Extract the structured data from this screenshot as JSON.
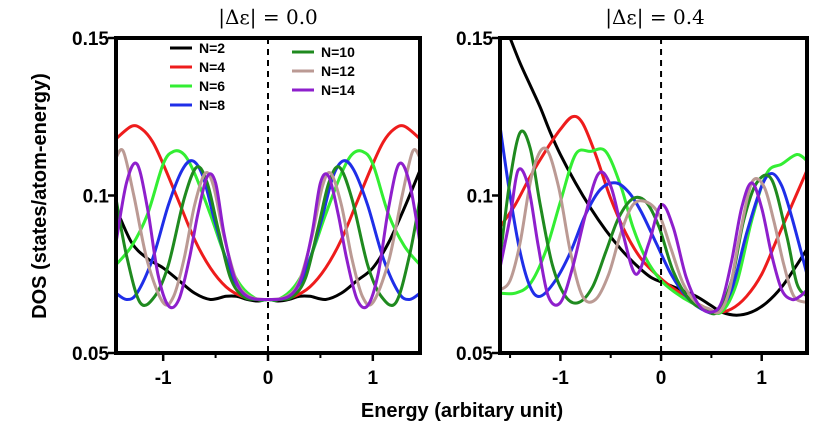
{
  "figure": {
    "xlabel": "Energy (arbitary unit)",
    "ylabel": "DOS (states/atom-energy)"
  },
  "chart_data": [
    {
      "type": "line",
      "title": "|Δε| = 0.0",
      "xlim": [
        -1.45,
        1.45
      ],
      "ylim": [
        0.05,
        0.15
      ],
      "xticks": [
        -1,
        0,
        1
      ],
      "xtick_labels": [
        "-1",
        "0",
        "1"
      ],
      "yticks": [
        0.05,
        0.1,
        0.15
      ],
      "ytick_labels": [
        "0.05",
        "0.1",
        "0.15"
      ],
      "reference_line": {
        "x": 0,
        "style": "dashed"
      },
      "legend": {
        "position": "top-left",
        "columns": 2
      },
      "series": [
        {
          "name": "N=2",
          "color": "#000000",
          "x": [
            -1.45,
            -1.3,
            -1.15,
            -1.0,
            -0.85,
            -0.7,
            -0.55,
            -0.4,
            -0.3,
            -0.2,
            -0.1,
            0,
            0.1,
            0.2,
            0.3,
            0.4,
            0.55,
            0.7,
            0.85,
            1.0,
            1.15,
            1.3,
            1.45
          ],
          "y": [
            0.096,
            0.085,
            0.08,
            0.077,
            0.073,
            0.069,
            0.067,
            0.068,
            0.068,
            0.067,
            0.0665,
            0.067,
            0.0665,
            0.067,
            0.068,
            0.068,
            0.067,
            0.069,
            0.073,
            0.077,
            0.085,
            0.096,
            0.108
          ]
        },
        {
          "name": "N=4",
          "color": "#ee1c1c",
          "x": [
            -1.45,
            -1.3,
            -1.2,
            -1.1,
            -1.0,
            -0.85,
            -0.7,
            -0.55,
            -0.4,
            -0.25,
            -0.1,
            0,
            0.1,
            0.25,
            0.4,
            0.55,
            0.7,
            0.85,
            1.0,
            1.1,
            1.2,
            1.3,
            1.45
          ],
          "y": [
            0.118,
            0.122,
            0.121,
            0.117,
            0.11,
            0.098,
            0.086,
            0.077,
            0.071,
            0.068,
            0.067,
            0.067,
            0.067,
            0.068,
            0.071,
            0.077,
            0.086,
            0.098,
            0.11,
            0.117,
            0.121,
            0.122,
            0.118
          ]
        },
        {
          "name": "N=6",
          "color": "#33ee33",
          "x": [
            -1.45,
            -1.3,
            -1.15,
            -1.0,
            -0.9,
            -0.8,
            -0.7,
            -0.55,
            -0.4,
            -0.25,
            -0.1,
            0,
            0.1,
            0.25,
            0.4,
            0.55,
            0.7,
            0.8,
            0.9,
            1.0,
            1.15,
            1.3,
            1.45
          ],
          "y": [
            0.078,
            0.084,
            0.094,
            0.11,
            0.114,
            0.113,
            0.107,
            0.094,
            0.08,
            0.071,
            0.067,
            0.067,
            0.067,
            0.071,
            0.08,
            0.094,
            0.107,
            0.113,
            0.114,
            0.11,
            0.094,
            0.084,
            0.078
          ]
        },
        {
          "name": "N=8",
          "color": "#1f2ee8",
          "x": [
            -1.45,
            -1.35,
            -1.25,
            -1.1,
            -0.95,
            -0.82,
            -0.72,
            -0.62,
            -0.5,
            -0.35,
            -0.2,
            -0.1,
            0,
            0.1,
            0.2,
            0.35,
            0.5,
            0.62,
            0.72,
            0.82,
            0.95,
            1.1,
            1.25,
            1.35,
            1.45
          ],
          "y": [
            0.069,
            0.067,
            0.069,
            0.08,
            0.097,
            0.108,
            0.111,
            0.106,
            0.091,
            0.075,
            0.068,
            0.067,
            0.067,
            0.067,
            0.068,
            0.075,
            0.091,
            0.106,
            0.111,
            0.108,
            0.097,
            0.08,
            0.069,
            0.067,
            0.069
          ]
        },
        {
          "name": "N=10",
          "color": "#1f8a1f",
          "x": [
            -1.45,
            -1.35,
            -1.22,
            -1.08,
            -0.95,
            -0.8,
            -0.68,
            -0.58,
            -0.48,
            -0.36,
            -0.24,
            -0.12,
            0,
            0.12,
            0.24,
            0.36,
            0.48,
            0.58,
            0.68,
            0.8,
            0.95,
            1.08,
            1.22,
            1.35,
            1.45
          ],
          "y": [
            0.099,
            0.081,
            0.066,
            0.068,
            0.078,
            0.099,
            0.109,
            0.104,
            0.09,
            0.074,
            0.068,
            0.067,
            0.067,
            0.067,
            0.068,
            0.074,
            0.09,
            0.104,
            0.109,
            0.099,
            0.078,
            0.068,
            0.066,
            0.081,
            0.099
          ]
        },
        {
          "name": "N=12",
          "color": "#bb9a94",
          "x": [
            -1.45,
            -1.38,
            -1.28,
            -1.15,
            -1.0,
            -0.9,
            -0.8,
            -0.7,
            -0.6,
            -0.52,
            -0.42,
            -0.3,
            -0.18,
            0,
            0.18,
            0.3,
            0.42,
            0.52,
            0.6,
            0.7,
            0.8,
            0.9,
            1.0,
            1.15,
            1.28,
            1.38,
            1.45
          ],
          "y": [
            0.112,
            0.114,
            0.1,
            0.079,
            0.066,
            0.068,
            0.08,
            0.097,
            0.107,
            0.103,
            0.087,
            0.073,
            0.068,
            0.067,
            0.068,
            0.073,
            0.087,
            0.103,
            0.107,
            0.097,
            0.08,
            0.068,
            0.066,
            0.079,
            0.1,
            0.114,
            0.112
          ]
        },
        {
          "name": "N=14",
          "color": "#8e1fcc",
          "x": [
            -1.45,
            -1.35,
            -1.25,
            -1.15,
            -1.05,
            -0.95,
            -0.85,
            -0.75,
            -0.67,
            -0.58,
            -0.5,
            -0.42,
            -0.32,
            -0.2,
            0,
            0.2,
            0.32,
            0.42,
            0.5,
            0.58,
            0.67,
            0.75,
            0.85,
            0.95,
            1.05,
            1.15,
            1.25,
            1.35,
            1.45
          ],
          "y": [
            0.085,
            0.104,
            0.11,
            0.096,
            0.075,
            0.065,
            0.067,
            0.08,
            0.094,
            0.106,
            0.104,
            0.088,
            0.074,
            0.068,
            0.067,
            0.068,
            0.074,
            0.088,
            0.104,
            0.106,
            0.094,
            0.08,
            0.067,
            0.065,
            0.075,
            0.096,
            0.11,
            0.104,
            0.085
          ]
        }
      ]
    },
    {
      "type": "line",
      "title": "|Δε| = 0.4",
      "xlim": [
        -1.6,
        1.45
      ],
      "ylim": [
        0.05,
        0.15
      ],
      "xticks": [
        -1,
        0,
        1
      ],
      "xtick_labels": [
        "-1",
        "0",
        "1"
      ],
      "yticks": [
        0.05,
        0.1,
        0.15
      ],
      "ytick_labels": [
        "0.05",
        "0.1",
        "0.15"
      ],
      "reference_line": {
        "x": 0,
        "style": "dashed"
      },
      "series": [
        {
          "name": "N=2",
          "color": "#000000",
          "x": [
            -1.6,
            -1.5,
            -1.4,
            -1.3,
            -1.2,
            -1.1,
            -1.0,
            -0.85,
            -0.7,
            -0.55,
            -0.4,
            -0.25,
            -0.1,
            0.05,
            0.2,
            0.35,
            0.5,
            0.6,
            0.75,
            0.9,
            1.05,
            1.2,
            1.35,
            1.45
          ],
          "y": [
            0.158,
            0.15,
            0.142,
            0.135,
            0.128,
            0.12,
            0.113,
            0.104,
            0.096,
            0.089,
            0.083,
            0.078,
            0.074,
            0.072,
            0.07,
            0.068,
            0.065,
            0.063,
            0.062,
            0.063,
            0.066,
            0.071,
            0.078,
            0.083
          ]
        },
        {
          "name": "N=4",
          "color": "#ee1c1c",
          "x": [
            -1.6,
            -1.45,
            -1.3,
            -1.15,
            -1.0,
            -0.88,
            -0.78,
            -0.65,
            -0.5,
            -0.35,
            -0.2,
            -0.05,
            0.1,
            0.25,
            0.4,
            0.55,
            0.7,
            0.85,
            1.0,
            1.15,
            1.3,
            1.45
          ],
          "y": [
            0.09,
            0.097,
            0.106,
            0.114,
            0.121,
            0.125,
            0.123,
            0.113,
            0.099,
            0.088,
            0.08,
            0.075,
            0.071,
            0.068,
            0.065,
            0.063,
            0.064,
            0.068,
            0.075,
            0.086,
            0.097,
            0.108
          ]
        },
        {
          "name": "N=6",
          "color": "#33ee33",
          "x": [
            -1.6,
            -1.45,
            -1.3,
            -1.15,
            -1.0,
            -0.85,
            -0.7,
            -0.55,
            -0.4,
            -0.28,
            -0.15,
            0,
            0.15,
            0.3,
            0.45,
            0.6,
            0.75,
            0.9,
            1.05,
            1.2,
            1.35,
            1.45
          ],
          "y": [
            0.069,
            0.069,
            0.072,
            0.082,
            0.098,
            0.113,
            0.114,
            0.114,
            0.103,
            0.09,
            0.08,
            0.073,
            0.069,
            0.066,
            0.064,
            0.063,
            0.072,
            0.092,
            0.107,
            0.11,
            0.113,
            0.111
          ]
        },
        {
          "name": "N=8",
          "color": "#1f2ee8",
          "x": [
            -1.6,
            -1.5,
            -1.4,
            -1.3,
            -1.2,
            -1.05,
            -0.9,
            -0.75,
            -0.6,
            -0.45,
            -0.32,
            -0.2,
            -0.05,
            0.1,
            0.25,
            0.4,
            0.55,
            0.7,
            0.85,
            1.0,
            1.1,
            1.2,
            1.3,
            1.45
          ],
          "y": [
            0.122,
            0.1,
            0.082,
            0.071,
            0.068,
            0.073,
            0.082,
            0.094,
            0.102,
            0.104,
            0.101,
            0.095,
            0.085,
            0.075,
            0.068,
            0.064,
            0.063,
            0.07,
            0.088,
            0.103,
            0.107,
            0.103,
            0.093,
            0.075
          ]
        },
        {
          "name": "N=10",
          "color": "#1f8a1f",
          "x": [
            -1.6,
            -1.5,
            -1.4,
            -1.3,
            -1.2,
            -1.08,
            -0.95,
            -0.82,
            -0.68,
            -0.55,
            -0.42,
            -0.28,
            -0.15,
            -0.02,
            0.12,
            0.28,
            0.42,
            0.56,
            0.7,
            0.82,
            0.95,
            1.1,
            1.25,
            1.35,
            1.45
          ],
          "y": [
            0.08,
            0.105,
            0.12,
            0.115,
            0.097,
            0.078,
            0.068,
            0.066,
            0.071,
            0.082,
            0.093,
            0.099,
            0.098,
            0.09,
            0.076,
            0.067,
            0.064,
            0.063,
            0.073,
            0.092,
            0.104,
            0.105,
            0.087,
            0.072,
            0.068
          ]
        },
        {
          "name": "N=12",
          "color": "#bb9a94",
          "x": [
            -1.6,
            -1.5,
            -1.4,
            -1.28,
            -1.15,
            -1.02,
            -0.9,
            -0.78,
            -0.65,
            -0.52,
            -0.4,
            -0.28,
            -0.15,
            -0.02,
            0.1,
            0.22,
            0.35,
            0.48,
            0.58,
            0.68,
            0.78,
            0.9,
            1.02,
            1.12,
            1.22,
            1.32,
            1.45
          ],
          "y": [
            0.07,
            0.073,
            0.085,
            0.107,
            0.115,
            0.103,
            0.082,
            0.068,
            0.067,
            0.075,
            0.088,
            0.097,
            0.098,
            0.094,
            0.083,
            0.072,
            0.066,
            0.064,
            0.063,
            0.07,
            0.087,
            0.104,
            0.103,
            0.092,
            0.078,
            0.068,
            0.066
          ]
        },
        {
          "name": "N=14",
          "color": "#8e1fcc",
          "x": [
            -1.6,
            -1.5,
            -1.42,
            -1.32,
            -1.22,
            -1.12,
            -1.0,
            -0.88,
            -0.75,
            -0.62,
            -0.5,
            -0.38,
            -0.25,
            -0.12,
            0,
            0.12,
            0.25,
            0.38,
            0.5,
            0.6,
            0.7,
            0.8,
            0.9,
            1.0,
            1.1,
            1.2,
            1.3,
            1.38,
            1.45
          ],
          "y": [
            0.077,
            0.093,
            0.108,
            0.103,
            0.084,
            0.068,
            0.066,
            0.077,
            0.094,
            0.107,
            0.103,
            0.088,
            0.075,
            0.085,
            0.097,
            0.09,
            0.074,
            0.065,
            0.063,
            0.066,
            0.079,
            0.096,
            0.104,
            0.096,
            0.081,
            0.07,
            0.067,
            0.068,
            0.07
          ]
        }
      ]
    }
  ]
}
